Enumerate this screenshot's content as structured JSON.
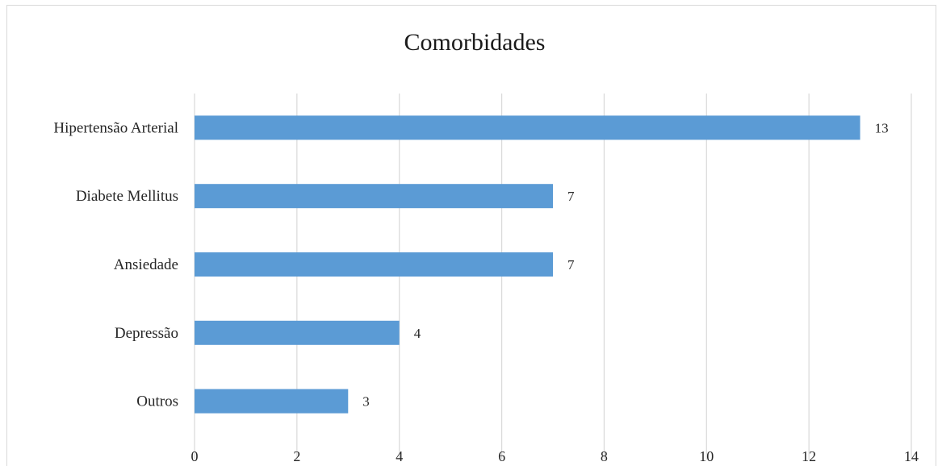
{
  "chart_data": {
    "type": "bar",
    "orientation": "horizontal",
    "title": "Comorbidades",
    "categories": [
      "Hipertensão Arterial",
      "Diabete Mellitus",
      "Ansiedade",
      "Depressão",
      "Outros"
    ],
    "values": [
      13,
      7,
      7,
      4,
      3
    ],
    "data_labels": [
      "13",
      "7",
      "7",
      "4",
      "3"
    ],
    "x_ticks": [
      "0",
      "2",
      "4",
      "6",
      "8",
      "10",
      "12",
      "14"
    ],
    "xlim": [
      0,
      14
    ],
    "xlabel": "",
    "ylabel": "",
    "grid": "vertical",
    "legend": "none",
    "bar_color": "#5b9bd5",
    "grid_color": "#d9d9d9"
  }
}
